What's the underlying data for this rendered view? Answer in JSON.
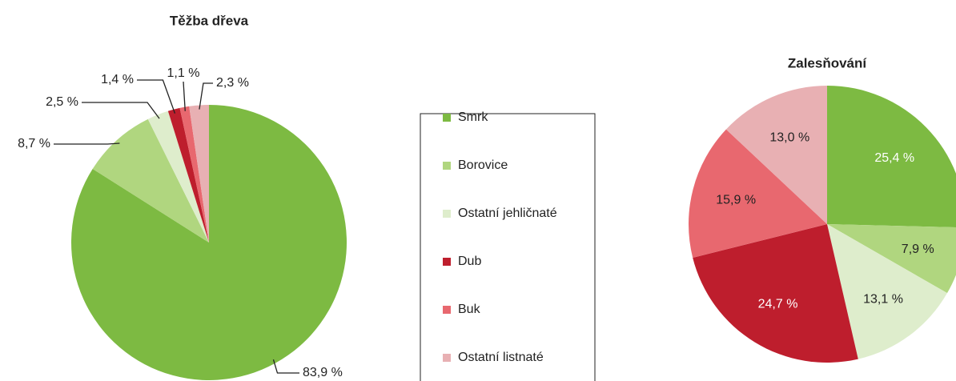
{
  "chart_data": [
    {
      "type": "pie",
      "title": "Těžba dřeva",
      "categories": [
        "Smrk",
        "Borovice",
        "Ostatní jehličnaté",
        "Dub",
        "Buk",
        "Ostatní listnaté"
      ],
      "values": [
        83.9,
        8.7,
        2.5,
        1.4,
        1.1,
        2.3
      ],
      "value_labels": [
        "83,9 %",
        "8,7 %",
        "2,5 %",
        "1,4 %",
        "1,1 %",
        "2,3 %"
      ],
      "colors": [
        "#7dba42",
        "#b0d67f",
        "#deedcc",
        "#be1e2d",
        "#e8686f",
        "#e8b0b3"
      ]
    },
    {
      "type": "pie",
      "title": "Zalesňování",
      "categories": [
        "Smrk",
        "Borovice",
        "Ostatní jehličnaté",
        "Dub",
        "Buk",
        "Ostatní listnaté"
      ],
      "values": [
        25.4,
        7.9,
        13.1,
        24.7,
        15.9,
        13.0
      ],
      "value_labels": [
        "25,4 %",
        "7,9 %",
        "13,1 %",
        "24,7 %",
        "15,9 %",
        "13,0 %"
      ],
      "colors": [
        "#7dba42",
        "#b0d67f",
        "#deedcc",
        "#be1e2d",
        "#e8686f",
        "#e8b0b3"
      ]
    }
  ]
}
